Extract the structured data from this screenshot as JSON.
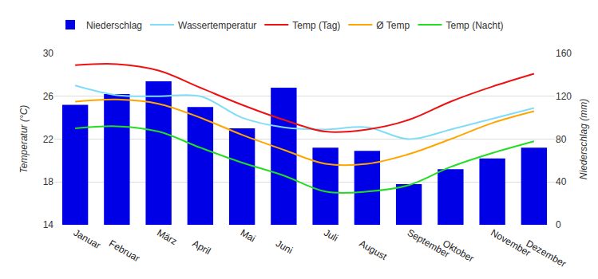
{
  "chart_data": {
    "type": "combo",
    "categories": [
      "Januar",
      "Februar",
      "März",
      "April",
      "Mai",
      "Juni",
      "Juli",
      "August",
      "September",
      "Oktober",
      "November",
      "Dezember"
    ],
    "series": [
      {
        "name": "Niederschlag",
        "type": "bar",
        "axis": "y2",
        "color": "#0000e6",
        "values": [
          112,
          122,
          134,
          110,
          90,
          128,
          72,
          69,
          38,
          52,
          62,
          72
        ]
      },
      {
        "name": "Wassertemperatur",
        "type": "line",
        "color": "#80dcf8",
        "line_style": "smooth",
        "values": [
          27.0,
          26.1,
          26.0,
          26.0,
          24.0,
          23.1,
          22.9,
          23.1,
          22.0,
          22.9,
          23.9,
          24.9
        ]
      },
      {
        "name": "Temp (Tag)",
        "type": "line",
        "color": "#ee1111",
        "line_style": "smooth",
        "values": [
          28.9,
          29.0,
          28.4,
          26.8,
          25.2,
          23.8,
          22.7,
          22.9,
          23.8,
          25.5,
          26.9,
          28.1
        ]
      },
      {
        "name": "Ø Temp",
        "type": "line",
        "color": "#ffa500",
        "line_style": "smooth",
        "values": [
          25.5,
          25.7,
          25.3,
          24.0,
          22.4,
          21.0,
          19.7,
          19.7,
          20.6,
          22.0,
          23.5,
          24.6
        ]
      },
      {
        "name": "Temp (Nacht)",
        "type": "line",
        "color": "#22dd22",
        "line_style": "smooth",
        "values": [
          23.0,
          23.2,
          22.7,
          21.2,
          19.8,
          18.6,
          17.1,
          17.1,
          17.7,
          19.4,
          20.7,
          21.8
        ]
      }
    ],
    "ylabel": "Temperatur (°C)",
    "y2label": "Niederschlag (mm)",
    "ylim": [
      14,
      30
    ],
    "yticks": [
      14,
      18,
      22,
      26,
      30
    ],
    "y2lim": [
      0,
      160
    ],
    "y2ticks": [
      0,
      40,
      80,
      120,
      160
    ],
    "grid": true,
    "legend": "top"
  }
}
